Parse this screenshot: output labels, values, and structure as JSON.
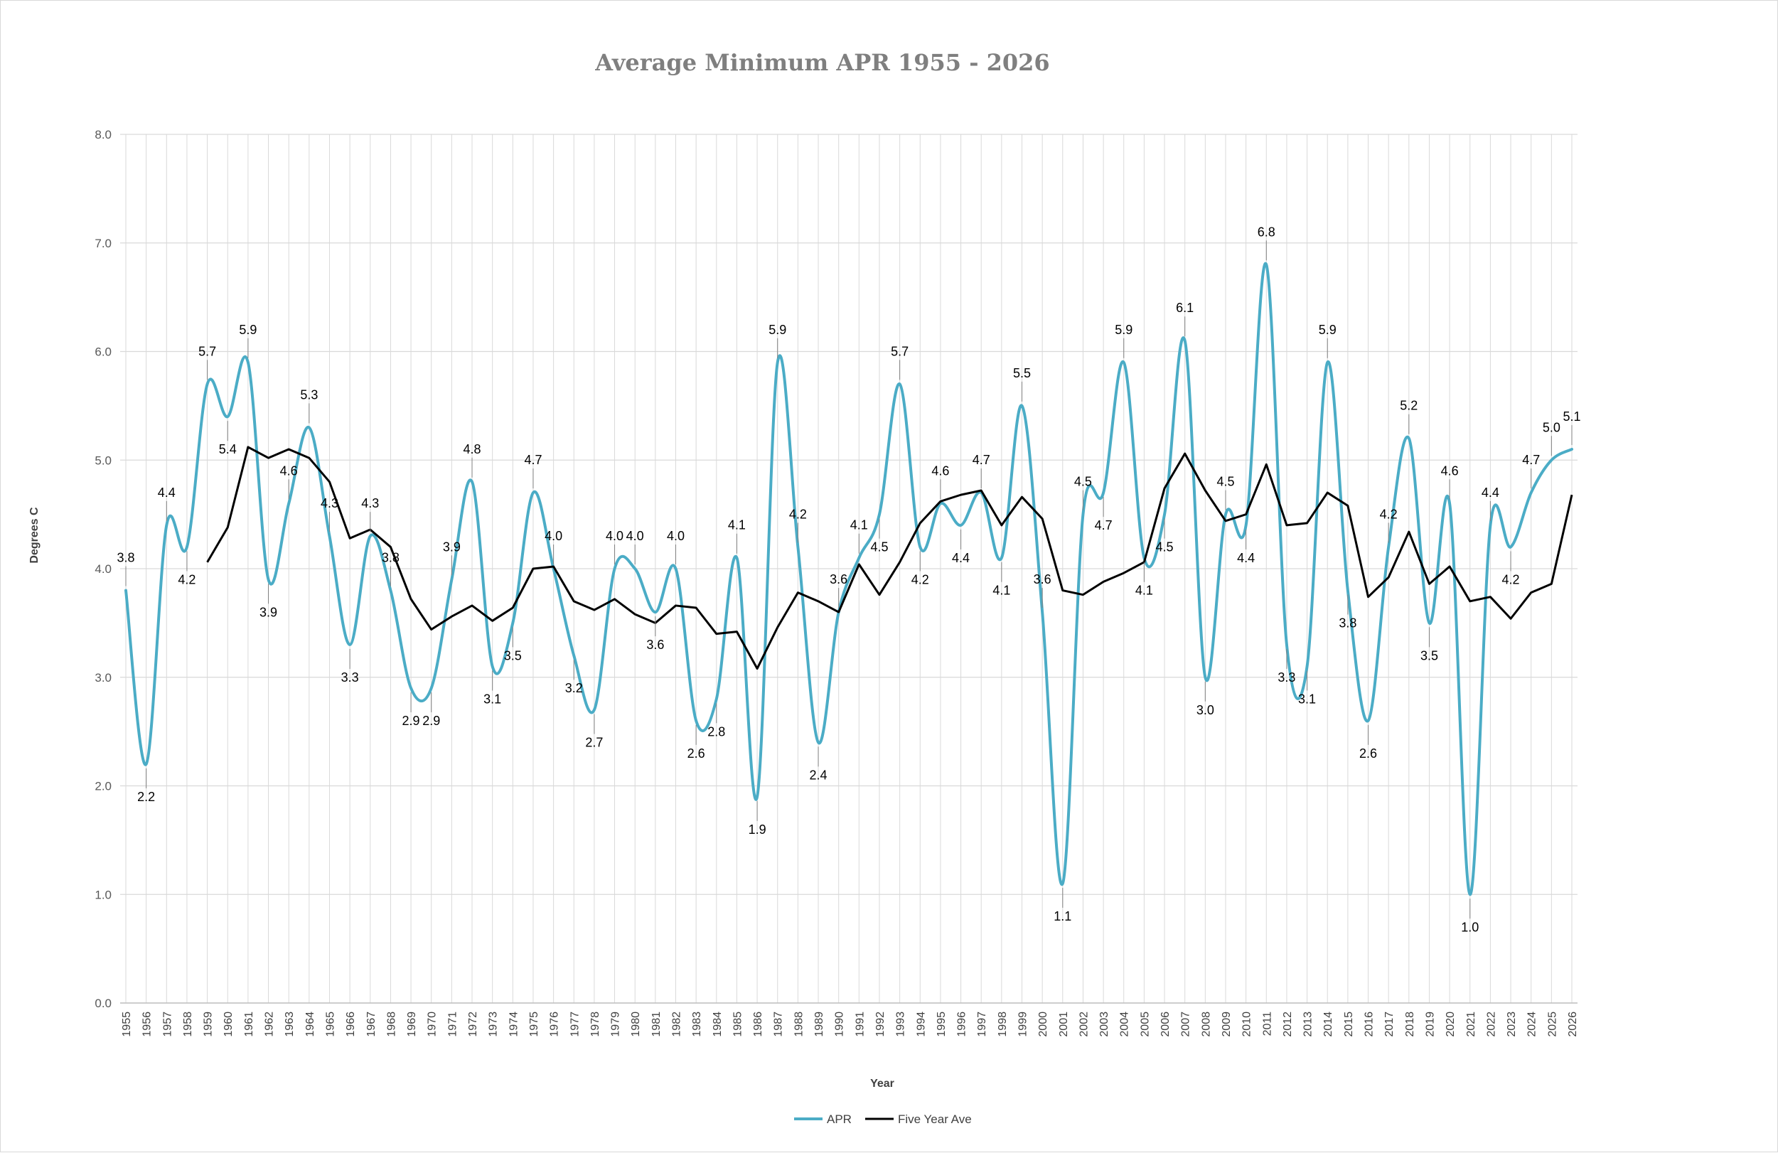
{
  "chart_data": {
    "type": "line",
    "title": "Average Minimum APR 1955 - 2026",
    "xlabel": "Year",
    "ylabel": "Degrees C",
    "ylim": [
      0,
      8
    ],
    "yticks": [
      "0.0",
      "1.0",
      "2.0",
      "3.0",
      "4.0",
      "5.0",
      "6.0",
      "7.0",
      "8.0"
    ],
    "grid": true,
    "legend_position": "bottom",
    "x": [
      1955,
      1956,
      1957,
      1958,
      1959,
      1960,
      1961,
      1962,
      1963,
      1964,
      1965,
      1966,
      1967,
      1968,
      1969,
      1970,
      1971,
      1972,
      1973,
      1974,
      1975,
      1976,
      1977,
      1978,
      1979,
      1980,
      1981,
      1982,
      1983,
      1984,
      1985,
      1986,
      1987,
      1988,
      1989,
      1990,
      1991,
      1992,
      1993,
      1994,
      1995,
      1996,
      1997,
      1998,
      1999,
      2000,
      2001,
      2002,
      2003,
      2004,
      2005,
      2006,
      2007,
      2008,
      2009,
      2010,
      2011,
      2012,
      2013,
      2014,
      2015,
      2016,
      2017,
      2018,
      2019,
      2020,
      2021,
      2022,
      2023,
      2024,
      2025,
      2026
    ],
    "series": [
      {
        "name": "APR",
        "color": "#4bacc6",
        "smooth": true,
        "values": [
          3.8,
          2.2,
          4.4,
          4.2,
          5.7,
          5.4,
          5.9,
          3.9,
          4.6,
          5.3,
          4.3,
          3.3,
          4.3,
          3.8,
          2.9,
          2.9,
          3.9,
          4.8,
          3.1,
          3.5,
          4.7,
          4.0,
          3.2,
          2.7,
          4.0,
          4.0,
          3.6,
          4.0,
          2.6,
          2.8,
          4.1,
          1.9,
          5.9,
          4.2,
          2.4,
          3.6,
          4.1,
          4.5,
          5.7,
          4.2,
          4.6,
          4.4,
          4.7,
          4.1,
          5.5,
          3.6,
          1.1,
          4.5,
          4.7,
          5.9,
          4.1,
          4.5,
          6.1,
          3.0,
          4.5,
          4.4,
          6.8,
          3.3,
          3.1,
          5.9,
          3.8,
          2.6,
          4.2,
          5.2,
          3.5,
          4.6,
          1.0,
          4.4,
          4.2,
          4.7,
          5.0,
          5.1
        ],
        "labels": [
          "3.8",
          "2.2",
          "4.4",
          "4.2",
          "5.7",
          "5.4",
          "5.9",
          "3.9",
          "4.6",
          "5.3",
          "4.3",
          "3.3",
          "4.3",
          "3.8",
          "2.9",
          "2.9",
          "3.9",
          "4.8",
          "3.1",
          "3.5",
          "4.7",
          "4.0",
          "3.2",
          "2.7",
          "4.0",
          "4.0",
          "3.6",
          "4.0",
          "2.6",
          "2.8",
          "4.1",
          "1.9",
          "5.9",
          "4.2",
          "2.4",
          "3.6",
          "4.1",
          "4.5",
          "5.7",
          "4.2",
          "4.6",
          "4.4",
          "4.7",
          "4.1",
          "5.5",
          "3.6",
          "1.1",
          "4.5",
          "4.7",
          "5.9",
          "4.1",
          "4.5",
          "6.1",
          "3.0",
          "4.5",
          "4.4",
          "6.8",
          "3.3",
          "3.1",
          "5.9",
          "3.8",
          "2.6",
          "4.2",
          "5.2",
          "3.5",
          "4.6",
          "1.0",
          "4.4",
          "4.2",
          "4.7",
          "5.0",
          "5.1"
        ]
      },
      {
        "name": "Five Year Ave",
        "color": "#000000",
        "smooth": false,
        "values": [
          null,
          null,
          null,
          null,
          4.06,
          4.38,
          5.12,
          5.02,
          5.1,
          5.02,
          4.8,
          4.28,
          4.36,
          4.2,
          3.72,
          3.44,
          3.56,
          3.66,
          3.52,
          3.64,
          4.0,
          4.02,
          3.7,
          3.62,
          3.72,
          3.58,
          3.5,
          3.66,
          3.64,
          3.4,
          3.42,
          3.08,
          3.46,
          3.78,
          3.7,
          3.6,
          4.04,
          3.76,
          4.06,
          4.42,
          4.62,
          4.68,
          4.72,
          4.4,
          4.66,
          4.46,
          3.8,
          3.76,
          3.88,
          3.96,
          4.06,
          4.74,
          5.06,
          4.72,
          4.44,
          4.5,
          4.96,
          4.4,
          4.42,
          4.7,
          4.58,
          3.74,
          3.92,
          4.34,
          3.86,
          4.02,
          3.7,
          3.74,
          3.54,
          3.78,
          3.86,
          4.68
        ]
      }
    ]
  }
}
